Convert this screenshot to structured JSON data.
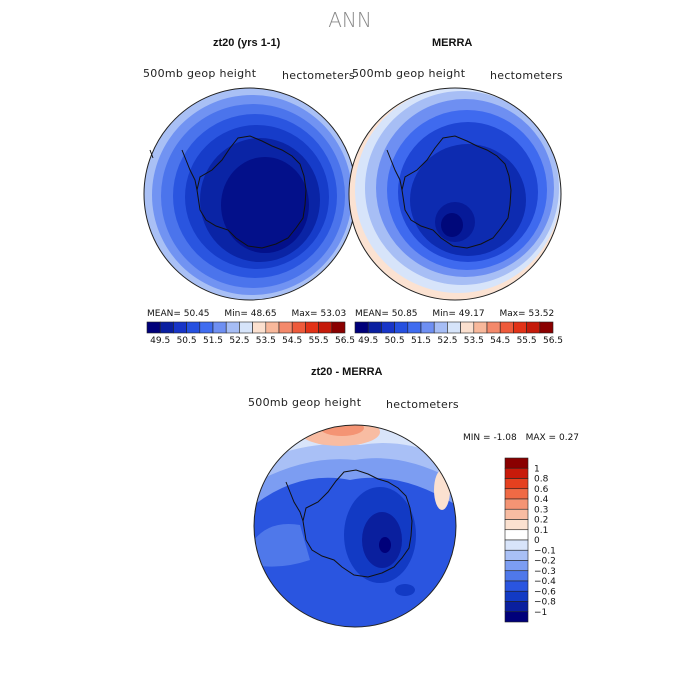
{
  "suptitle": "ANN",
  "panels": [
    {
      "title": "zt20 (yrs 1-1)",
      "field": "500mb geop height",
      "units": "hectometers",
      "mean_label": "MEAN=",
      "mean": "50.45",
      "min_label": "Min=",
      "min": "48.65",
      "max_label": "Max=",
      "max": "53.03"
    },
    {
      "title": "MERRA",
      "field": "500mb geop height",
      "units": "hectometers",
      "mean_label": "MEAN=",
      "mean": "50.85",
      "min_label": "Min=",
      "min": "49.17",
      "max_label": "Max=",
      "max": "53.52"
    },
    {
      "title": "zt20 - MERRA",
      "field": "500mb geop height",
      "units": "hectometers",
      "min_label": "MIN =",
      "min": "-1.08",
      "max_label": "MAX =",
      "max": "0.27"
    }
  ],
  "chart_data": [
    {
      "type": "heatmap",
      "title": "zt20 (yrs 1-1)",
      "projection": "south polar stereographic",
      "variable": "500mb geop height",
      "units": "hectometers",
      "stats": {
        "mean": 50.45,
        "min": 48.65,
        "max": 53.03
      },
      "colorbar": {
        "orientation": "horizontal",
        "ticks": [
          "49.5",
          "50.5",
          "51.5",
          "52.5",
          "53.5",
          "54.5",
          "55.5",
          "56.5"
        ],
        "colors": [
          "#00007a",
          "#0a1fa0",
          "#1835c8",
          "#2550e0",
          "#3f6cf0",
          "#6e8ff2",
          "#a6bdf5",
          "#d6e4fa",
          "#fbe0cf",
          "#f8b89b",
          "#f4896b",
          "#ee5a3b",
          "#e23217",
          "#c51a0a",
          "#8a0000"
        ]
      }
    },
    {
      "type": "heatmap",
      "title": "MERRA",
      "projection": "south polar stereographic",
      "variable": "500mb geop height",
      "units": "hectometers",
      "stats": {
        "mean": 50.85,
        "min": 49.17,
        "max": 53.52
      },
      "colorbar": {
        "orientation": "horizontal",
        "ticks": [
          "49.5",
          "50.5",
          "51.5",
          "52.5",
          "53.5",
          "54.5",
          "55.5",
          "56.5"
        ],
        "colors": [
          "#00007a",
          "#0a1fa0",
          "#1835c8",
          "#2550e0",
          "#3f6cf0",
          "#6e8ff2",
          "#a6bdf5",
          "#d6e4fa",
          "#fbe0cf",
          "#f8b89b",
          "#f4896b",
          "#ee5a3b",
          "#e23217",
          "#c51a0a",
          "#8a0000"
        ]
      }
    },
    {
      "type": "heatmap",
      "title": "zt20 - MERRA",
      "projection": "south polar stereographic",
      "variable": "500mb geop height",
      "units": "hectometers",
      "stats": {
        "min": -1.08,
        "max": 0.27
      },
      "colorbar": {
        "orientation": "vertical",
        "levels": [
          "1",
          "0.8",
          "0.6",
          "0.4",
          "0.3",
          "0.2",
          "0.1",
          "0",
          "-0.1",
          "-0.2",
          "-0.3",
          "-0.4",
          "-0.6",
          "-0.8",
          "-1"
        ],
        "colors": [
          "#8a0000",
          "#c81a0a",
          "#e5401f",
          "#f06a45",
          "#f49474",
          "#f8bca2",
          "#fbe1d0",
          "#ffffff",
          "#d8e4fa",
          "#a9c0f6",
          "#7c9df2",
          "#4f78ea",
          "#2a55e0",
          "#123ac4",
          "#0a1f9e",
          "#00007a"
        ]
      }
    }
  ]
}
